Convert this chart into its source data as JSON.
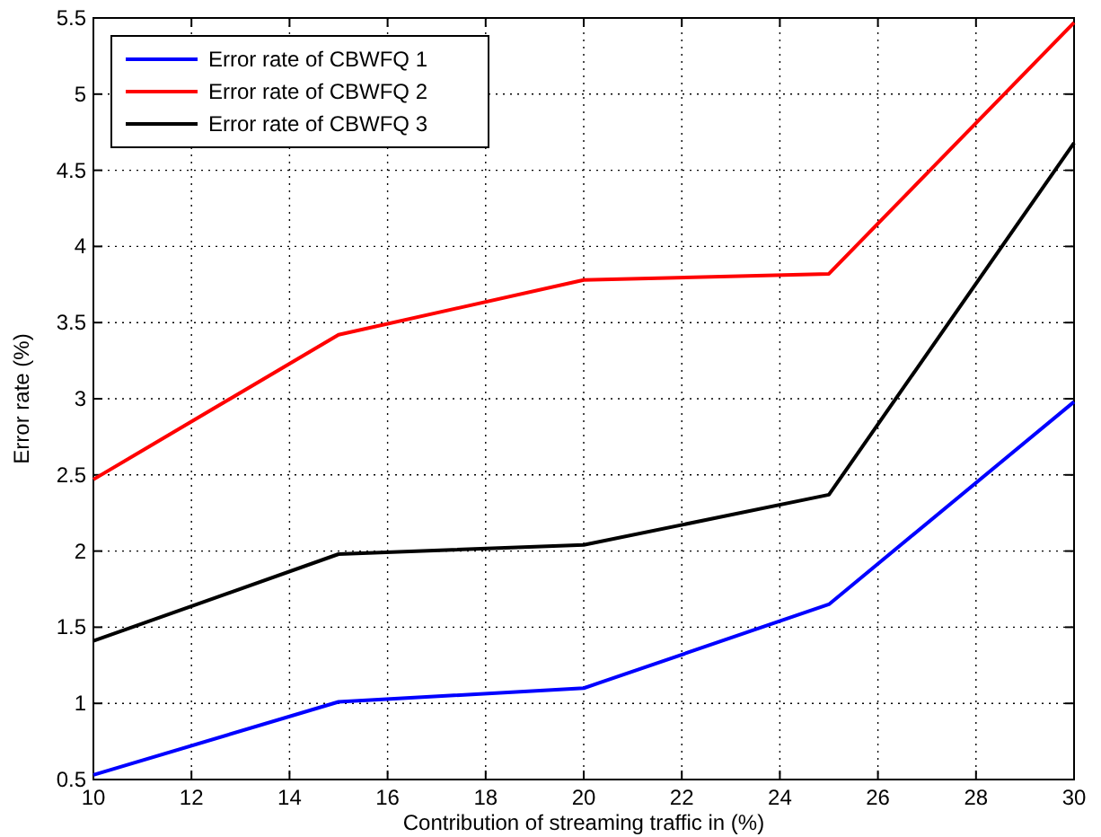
{
  "chart_data": {
    "type": "line",
    "xlabel": "Contribution of streaming traffic in (%)",
    "ylabel": "Error rate (%)",
    "x": [
      10,
      15,
      20,
      25,
      30
    ],
    "series": [
      {
        "name": "Error rate of CBWFQ 1",
        "color": "#0000ff",
        "values": [
          0.53,
          1.01,
          1.1,
          1.65,
          2.98
        ]
      },
      {
        "name": "Error rate of CBWFQ 2",
        "color": "#ff0000",
        "values": [
          2.47,
          3.42,
          3.78,
          3.82,
          5.47
        ]
      },
      {
        "name": "Error rate of CBWFQ 3",
        "color": "#000000",
        "values": [
          1.41,
          1.98,
          2.04,
          2.37,
          4.68
        ]
      }
    ],
    "xlim": [
      10,
      30
    ],
    "xticks": [
      10,
      12,
      14,
      16,
      18,
      20,
      22,
      24,
      26,
      28,
      30
    ],
    "ylim": [
      0.5,
      5.5
    ],
    "yticks": [
      0.5,
      1,
      1.5,
      2,
      2.5,
      3,
      3.5,
      4,
      4.5,
      5,
      5.5
    ],
    "grid": true,
    "legend": "top left",
    "marker": "none",
    "line_style": "solid"
  }
}
